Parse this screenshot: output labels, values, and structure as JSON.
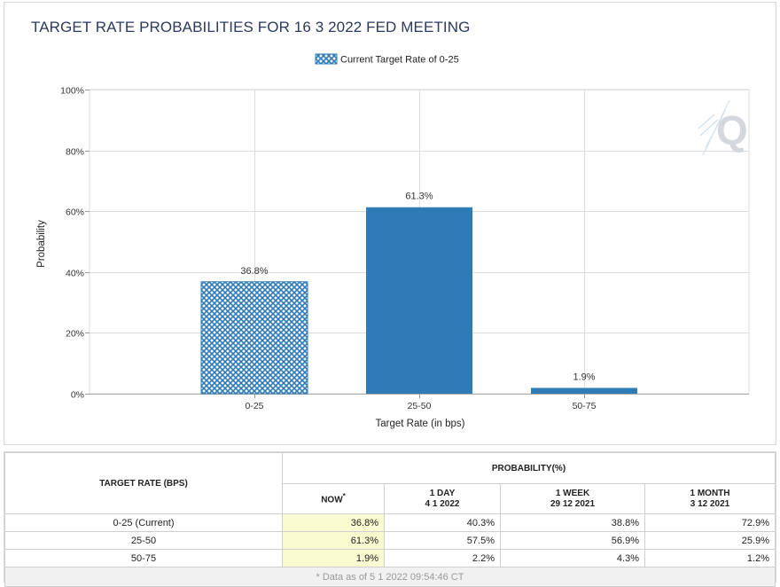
{
  "title": "TARGET RATE PROBABILITIES FOR 16 3 2022 FED MEETING",
  "legend": {
    "label": "Current Target Rate of 0-25"
  },
  "colors": {
    "bar": "#2e7bb6",
    "hatch_bg": "#ffffff",
    "title": "#2b3a5c",
    "grid": "#dddddd",
    "now_bg": "#fafad0"
  },
  "chart_data": {
    "type": "bar",
    "title": "TARGET RATE PROBABILITIES FOR 16 3 2022 FED MEETING",
    "categories": [
      "0-25",
      "25-50",
      "50-75"
    ],
    "values": [
      36.8,
      61.3,
      1.9
    ],
    "data_labels": [
      "36.8%",
      "61.3%",
      "1.9%"
    ],
    "current_category": "0-25",
    "xlabel": "Target Rate (in bps)",
    "ylabel": "Probability",
    "ylim": [
      0,
      100
    ],
    "yticks": [
      0,
      20,
      40,
      60,
      80,
      100
    ],
    "ytick_labels": [
      "0%",
      "20%",
      "40%",
      "60%",
      "80%",
      "100%"
    ],
    "grid": true,
    "legend_position": "top-center"
  },
  "table": {
    "target_header": "TARGET RATE (BPS)",
    "prob_header": "PROBABILITY(%)",
    "columns": [
      {
        "label": "NOW",
        "mark": "*",
        "date": ""
      },
      {
        "label": "1 DAY",
        "mark": "",
        "date": "4 1 2022"
      },
      {
        "label": "1 WEEK",
        "mark": "",
        "date": "29 12 2021"
      },
      {
        "label": "1 MONTH",
        "mark": "",
        "date": "3 12 2021"
      }
    ],
    "rows": [
      {
        "rate": "0-25 (Current)",
        "values": [
          "36.8%",
          "40.3%",
          "38.8%",
          "72.9%"
        ]
      },
      {
        "rate": "25-50",
        "values": [
          "61.3%",
          "57.5%",
          "56.9%",
          "25.9%"
        ]
      },
      {
        "rate": "50-75",
        "values": [
          "1.9%",
          "2.2%",
          "4.3%",
          "1.2%"
        ]
      }
    ],
    "footer": "* Data as of 5 1 2022 09:54:46 CT"
  }
}
